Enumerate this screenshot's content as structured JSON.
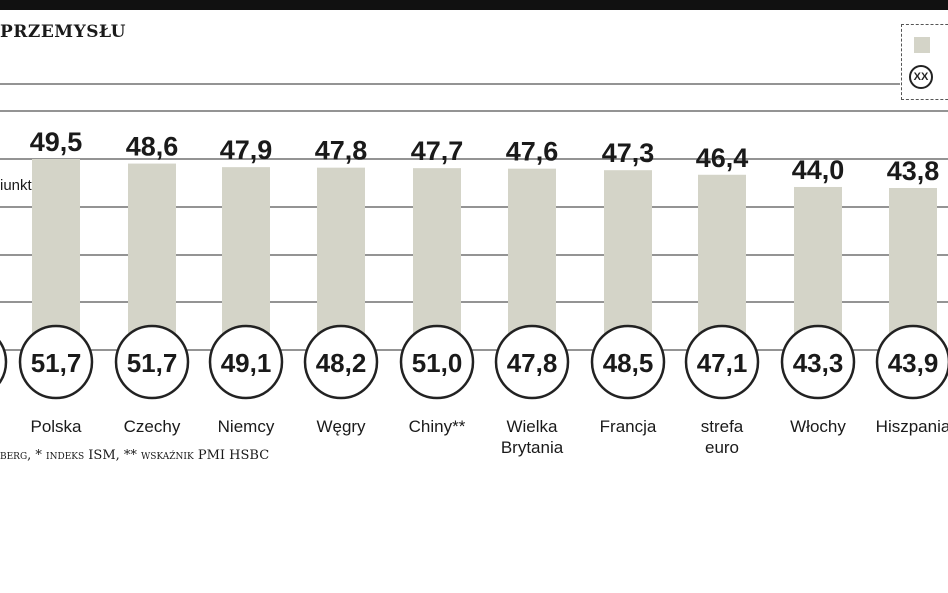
{
  "header": {
    "title": "PRZEMYSŁU"
  },
  "legend": {
    "bar_color": "#d4d4c8",
    "circle_label": "XX"
  },
  "side_label": "iunktura",
  "footnote": "berg, * indeks ISM, ** wskaźnik PMI HSBC",
  "colors": {
    "bar": "#d4d4c8",
    "grid": "#555555",
    "ink": "#1a1a1a",
    "circle_border": "#222222"
  },
  "chart_data": {
    "type": "bar",
    "categories": [
      "",
      "Polska",
      "Czechy",
      "Niemcy",
      "Węgry",
      "Chiny**",
      "Wielka Brytania",
      "Francja",
      "strefa euro",
      "Włochy",
      "Hiszpania"
    ],
    "series": [
      {
        "values": [
          null,
          49.5,
          48.6,
          47.9,
          47.8,
          47.7,
          47.6,
          47.3,
          46.4,
          44.0,
          43.8
        ],
        "labels": [
          "",
          "49,5",
          "48,6",
          "47,9",
          "47,8",
          "47,7",
          "47,6",
          "47,3",
          "46,4",
          "44,0",
          "43,8"
        ]
      },
      {
        "values": [
          null,
          51.7,
          51.7,
          49.1,
          48.2,
          51.0,
          47.8,
          48.5,
          47.1,
          43.3,
          43.9
        ],
        "labels": [
          "",
          "51,7",
          "51,7",
          "49,1",
          "48,2",
          "51,0",
          "47,8",
          "48,5",
          "47,1",
          "43,3",
          "43,9"
        ]
      }
    ],
    "category_lines": [
      [],
      [
        "Polska"
      ],
      [
        "Czechy"
      ],
      [
        "Niemcy"
      ],
      [
        "Węgry"
      ],
      [
        "Chiny**"
      ],
      [
        "Wielka",
        "Brytania"
      ],
      [
        "Francja"
      ],
      [
        "strefa",
        "euro"
      ],
      [
        "Włochy"
      ],
      [
        "Hiszpania"
      ]
    ],
    "ylim": [
      0,
      50
    ],
    "grid": true
  }
}
